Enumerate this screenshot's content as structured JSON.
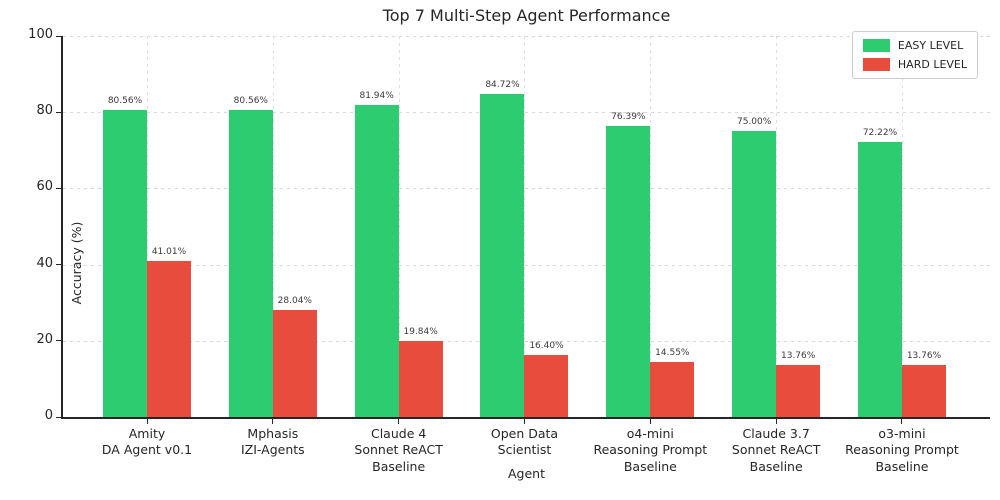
{
  "chart_data": {
    "type": "bar",
    "title": "Top 7 Multi-Step Agent Performance",
    "xlabel": "Agent",
    "ylabel": "Accuracy (%)",
    "ylim": [
      0,
      100
    ],
    "yticks": [
      0,
      20,
      40,
      60,
      80,
      100
    ],
    "grid": true,
    "legend_position": "upper right",
    "categories": [
      "Amity\nDA Agent v0.1",
      "Mphasis\nIZI-Agents",
      "Claude 4\nSonnet ReACT\nBaseline",
      "Open Data\nScientist",
      "o4-mini\nReasoning Prompt\nBaseline",
      "Claude 3.7\nSonnet ReACT\nBaseline",
      "o3-mini\nReasoning Prompt\nBaseline"
    ],
    "series": [
      {
        "name": "EASY LEVEL",
        "color": "#2ecc71",
        "values": [
          80.56,
          80.56,
          81.94,
          84.72,
          76.39,
          75.0,
          72.22
        ],
        "labels": [
          "80.56%",
          "80.56%",
          "81.94%",
          "84.72%",
          "76.39%",
          "75.00%",
          "72.22%"
        ]
      },
      {
        "name": "HARD LEVEL",
        "color": "#e74c3c",
        "values": [
          41.01,
          28.04,
          19.84,
          16.4,
          14.55,
          13.76,
          13.76
        ],
        "labels": [
          "41.01%",
          "28.04%",
          "19.84%",
          "16.40%",
          "14.55%",
          "13.76%",
          "13.76%"
        ]
      }
    ]
  },
  "colors": {
    "easy": "#2ecc71",
    "hard": "#e74c3c",
    "spine": "#262626",
    "grid": "#d9d9d9",
    "text": "#262626"
  }
}
